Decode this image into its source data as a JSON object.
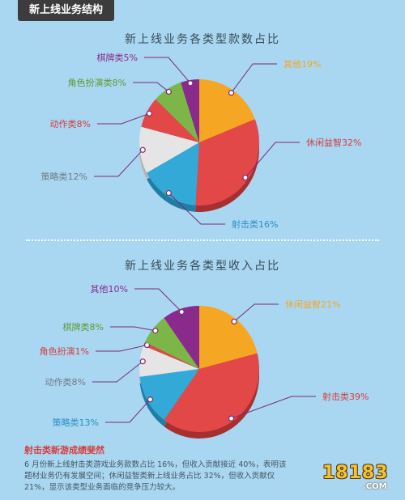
{
  "header": {
    "title": "新上线业务结构"
  },
  "colors": {
    "bg": "#a9d7f2",
    "leader": "#7a2a7a",
    "dot": "#ffffff"
  },
  "chart_data": [
    {
      "type": "pie",
      "title": "新上线业务各类型款数占比",
      "slices": [
        {
          "label": "其他19%",
          "value": 19,
          "color": "#f5a623",
          "side_color": "#c27f14",
          "label_color": "#f5a623"
        },
        {
          "label": "休闲益智32%",
          "value": 32,
          "color": "#e24848",
          "side_color": "#a82f2f",
          "label_color": "#d63c3c"
        },
        {
          "label": "射击类16%",
          "value": 16,
          "color": "#33a9d8",
          "side_color": "#227da2",
          "label_color": "#2a8fc4"
        },
        {
          "label": "策略类12%",
          "value": 12,
          "color": "#e5e5e5",
          "side_color": "#b4b4b4",
          "label_color": "#6f7b85"
        },
        {
          "label": "动作类8%",
          "value": 8,
          "color": "#e24848",
          "side_color": "#a82f2f",
          "label_color": "#d63c3c"
        },
        {
          "label": "角色扮演类8%",
          "value": 8,
          "color": "#7cb648",
          "side_color": "#568532",
          "label_color": "#5e9a2e"
        },
        {
          "label": "棋牌类5%",
          "value": 5,
          "color": "#8a2a8c",
          "side_color": "#5f1b60",
          "label_color": "#8a2a8c"
        }
      ]
    },
    {
      "type": "pie",
      "title": "新上线业务各类型收入占比",
      "slices": [
        {
          "label": "休闲益智21%",
          "value": 21,
          "color": "#f5a623",
          "side_color": "#c27f14",
          "label_color": "#f5a623"
        },
        {
          "label": "射击类39%",
          "value": 39,
          "color": "#e24848",
          "side_color": "#a82f2f",
          "label_color": "#d63c3c"
        },
        {
          "label": "策略类13%",
          "value": 13,
          "color": "#33a9d8",
          "side_color": "#227da2",
          "label_color": "#2a8fc4"
        },
        {
          "label": "动作类8%",
          "value": 8,
          "color": "#e5e5e5",
          "side_color": "#b4b4b4",
          "label_color": "#6f7b85"
        },
        {
          "label": "角色扮演1%",
          "value": 1,
          "color": "#e24848",
          "side_color": "#a82f2f",
          "label_color": "#d63c3c"
        },
        {
          "label": "棋牌类8%",
          "value": 8,
          "color": "#7cb648",
          "side_color": "#568532",
          "label_color": "#5e9a2e"
        },
        {
          "label": "其他10%",
          "value": 10,
          "color": "#8a2a8c",
          "side_color": "#5f1b60",
          "label_color": "#8a2a8c"
        }
      ]
    }
  ],
  "note": {
    "title": "射击类新游成绩斐然",
    "body": "6 月份新上线射击类游戏业务款数占比 16%，但收入贡献接近 40%，表明该题材业务仍有发展空间；休闲益智类新上线业务占比 32%，但收入贡献仅 21%，显示该类型业务面临的竞争压力较大。"
  },
  "logo": {
    "main": "18183",
    "sub": ".COM"
  }
}
